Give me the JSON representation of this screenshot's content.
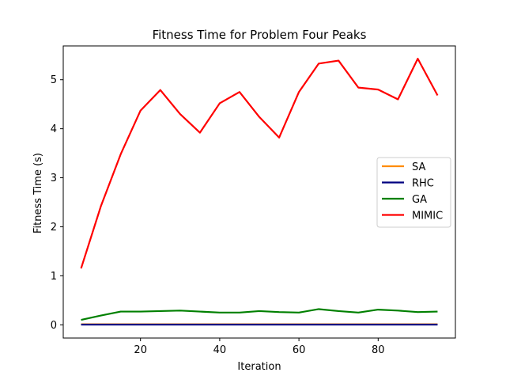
{
  "chart_data": {
    "type": "line",
    "title": "Fitness Time for Problem Four Peaks",
    "xlabel": "Iteration",
    "ylabel": "Fitness Time (s)",
    "xlim": [
      0.5,
      99.5
    ],
    "ylim": [
      -0.27,
      5.69
    ],
    "x_ticks": [
      20,
      40,
      60,
      80
    ],
    "y_ticks": [
      0,
      1,
      2,
      3,
      4,
      5
    ],
    "grid": false,
    "legend_position": "center-right",
    "x": [
      5,
      10,
      15,
      20,
      25,
      30,
      35,
      40,
      45,
      50,
      55,
      60,
      65,
      70,
      75,
      80,
      85,
      90,
      95
    ],
    "series": [
      {
        "name": "SA",
        "color": "#ff8c00",
        "values": [
          0.01,
          0.01,
          0.01,
          0.01,
          0.01,
          0.01,
          0.01,
          0.01,
          0.01,
          0.01,
          0.01,
          0.01,
          0.01,
          0.01,
          0.01,
          0.01,
          0.01,
          0.01,
          0.01
        ]
      },
      {
        "name": "RHC",
        "color": "#000080",
        "values": [
          0.005,
          0.005,
          0.005,
          0.005,
          0.005,
          0.005,
          0.005,
          0.005,
          0.005,
          0.005,
          0.005,
          0.005,
          0.005,
          0.005,
          0.005,
          0.005,
          0.005,
          0.005,
          0.005
        ]
      },
      {
        "name": "GA",
        "color": "#008000",
        "values": [
          0.1,
          0.19,
          0.27,
          0.27,
          0.28,
          0.29,
          0.27,
          0.25,
          0.25,
          0.28,
          0.26,
          0.25,
          0.32,
          0.28,
          0.25,
          0.31,
          0.29,
          0.26,
          0.27
        ]
      },
      {
        "name": "MIMIC",
        "color": "#ff0000",
        "values": [
          1.15,
          2.42,
          3.48,
          4.37,
          4.79,
          4.3,
          3.92,
          4.52,
          4.75,
          4.24,
          3.82,
          4.75,
          5.33,
          5.39,
          4.84,
          4.8,
          4.6,
          5.43,
          4.68
        ]
      }
    ]
  }
}
